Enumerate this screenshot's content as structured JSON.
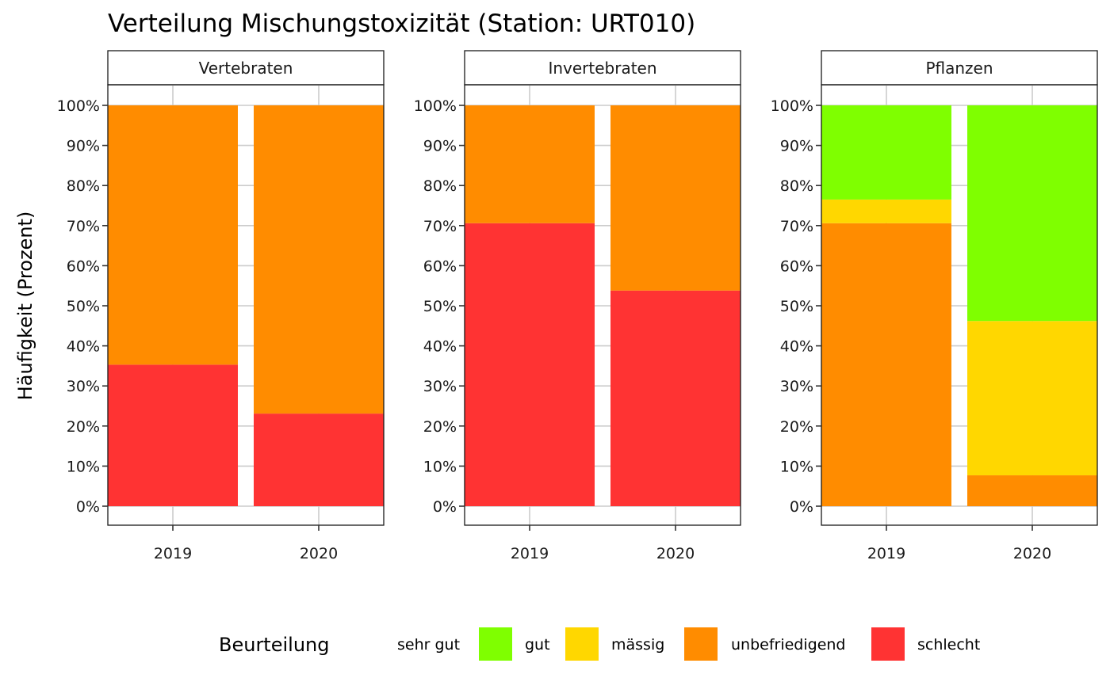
{
  "chart_data": {
    "type": "bar",
    "stacked": true,
    "title": "Verteilung Mischungstoxizität (Station: URT010)",
    "xlabel": "",
    "ylabel": "Häufigkeit (Prozent)",
    "ylim": [
      0,
      100
    ],
    "yticks": [
      "0%",
      "10%",
      "20%",
      "30%",
      "40%",
      "50%",
      "60%",
      "70%",
      "80%",
      "90%",
      "100%"
    ],
    "grid": true,
    "legend_position": "bottom",
    "legend_title": "Beurteilung",
    "categories": [
      "2019",
      "2020"
    ],
    "classes": [
      {
        "name": "sehr gut",
        "color": "#7FFF00"
      },
      {
        "name": "gut",
        "color": "#7FFF00"
      },
      {
        "name": "mässig",
        "color": "#FFD700"
      },
      {
        "name": "unbefriedigend",
        "color": "#FF8C00"
      },
      {
        "name": "schlecht",
        "color": "#FF3333"
      }
    ],
    "panels": [
      {
        "name": "Vertebraten",
        "series": [
          {
            "name": "schlecht",
            "values": [
              35.3,
              23.1
            ]
          },
          {
            "name": "unbefriedigend",
            "values": [
              64.7,
              76.9
            ]
          },
          {
            "name": "mässig",
            "values": [
              0,
              0
            ]
          },
          {
            "name": "gut",
            "values": [
              0,
              0
            ]
          }
        ]
      },
      {
        "name": "Invertebraten",
        "series": [
          {
            "name": "schlecht",
            "values": [
              70.6,
              53.8
            ]
          },
          {
            "name": "unbefriedigend",
            "values": [
              29.4,
              46.2
            ]
          },
          {
            "name": "mässig",
            "values": [
              0,
              0
            ]
          },
          {
            "name": "gut",
            "values": [
              0,
              0
            ]
          }
        ]
      },
      {
        "name": "Pflanzen",
        "series": [
          {
            "name": "schlecht",
            "values": [
              0,
              0
            ]
          },
          {
            "name": "unbefriedigend",
            "values": [
              70.6,
              7.7
            ]
          },
          {
            "name": "mässig",
            "values": [
              5.9,
              38.5
            ]
          },
          {
            "name": "gut",
            "values": [
              23.5,
              53.8
            ]
          }
        ]
      }
    ]
  }
}
